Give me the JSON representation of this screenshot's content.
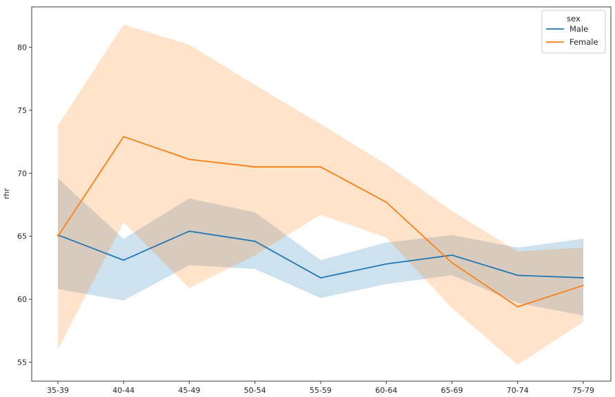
{
  "chart_data": {
    "type": "line",
    "title": "",
    "xlabel": "",
    "ylabel": "rhr",
    "ylim": [
      53.5,
      83.2
    ],
    "yticks": [
      55,
      60,
      65,
      70,
      75,
      80
    ],
    "grid": false,
    "categories": [
      "35-39",
      "40-44",
      "45-49",
      "50-54",
      "55-59",
      "60-64",
      "65-69",
      "70-74",
      "75-79"
    ],
    "legend": {
      "title": "sex",
      "position": "top-right"
    },
    "series": [
      {
        "name": "Male",
        "color": "#1f77b4",
        "values": [
          65.1,
          63.1,
          65.4,
          64.6,
          61.7,
          62.8,
          63.5,
          61.9,
          61.7
        ],
        "ci_low": [
          60.8,
          59.9,
          62.7,
          62.4,
          60.1,
          61.2,
          61.9,
          59.7,
          58.7
        ],
        "ci_high": [
          69.6,
          64.8,
          68.0,
          66.9,
          63.1,
          64.5,
          65.1,
          64.1,
          64.8
        ]
      },
      {
        "name": "Female",
        "color": "#ff7f0e",
        "values": [
          65.0,
          72.9,
          71.1,
          70.5,
          70.5,
          67.7,
          62.9,
          59.4,
          61.1
        ],
        "ci_low": [
          56.0,
          66.1,
          60.9,
          63.5,
          66.7,
          64.9,
          59.3,
          54.8,
          58.2
        ],
        "ci_high": [
          73.8,
          81.8,
          80.2,
          77.0,
          73.9,
          70.7,
          67.0,
          63.8,
          64.1
        ]
      }
    ]
  }
}
